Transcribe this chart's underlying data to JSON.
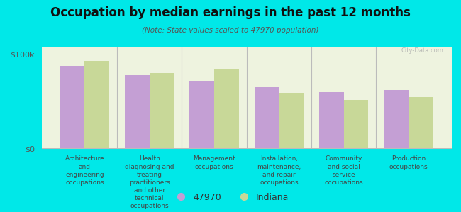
{
  "title": "Occupation by median earnings in the past 12 months",
  "subtitle": "(Note: State values scaled to 47970 population)",
  "background_color": "#00e8e8",
  "plot_bg_color": "#eef3df",
  "categories": [
    "Architecture\nand\nengineering\noccupations",
    "Health\ndiagnosing and\ntreating\npractitioners\nand other\ntechnical\noccupations",
    "Management\noccupations",
    "Installation,\nmaintenance,\nand repair\noccupations",
    "Community\nand social\nservice\noccupations",
    "Production\noccupations"
  ],
  "values_47970": [
    87000,
    78000,
    72000,
    65000,
    60000,
    62000
  ],
  "values_indiana": [
    92000,
    80000,
    84000,
    59000,
    52000,
    55000
  ],
  "color_47970": "#c49fd4",
  "color_indiana": "#c8d898",
  "ylim": [
    0,
    108000
  ],
  "yticks": [
    0,
    100000
  ],
  "ytick_labels": [
    "$0",
    "$100k"
  ],
  "legend_47970": "47970",
  "legend_indiana": "Indiana",
  "bar_width": 0.38
}
